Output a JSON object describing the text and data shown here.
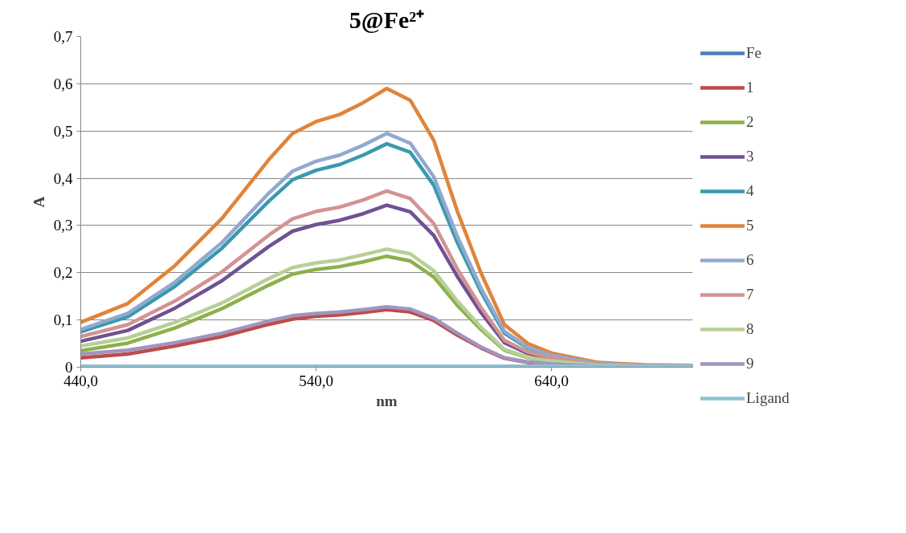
{
  "chart_data": {
    "type": "line",
    "title": "5@Fe²⁺",
    "xlabel": "nm",
    "ylabel": "A",
    "x": [
      440,
      460,
      480,
      500,
      520,
      530,
      540,
      550,
      560,
      570,
      580,
      590,
      600,
      610,
      620,
      630,
      640,
      660,
      680,
      700
    ],
    "xlim": [
      440,
      700
    ],
    "ylim": [
      0,
      0.7
    ],
    "xticks": [
      {
        "value": 440,
        "label": "440,0"
      },
      {
        "value": 540,
        "label": "540,0"
      },
      {
        "value": 640,
        "label": "640,0"
      }
    ],
    "yticks": [
      0,
      {
        "value": 0.1,
        "label": "0,1"
      },
      {
        "value": 0.2,
        "label": "0,2"
      },
      {
        "value": 0.3,
        "label": "0,3"
      },
      {
        "value": 0.4,
        "label": "0,4"
      },
      {
        "value": 0.5,
        "label": "0,5"
      },
      {
        "value": 0.6,
        "label": "0,6"
      },
      {
        "value": 0.7,
        "label": "0,7"
      }
    ],
    "grid": "y",
    "legend": "right",
    "marker": "none",
    "line_style": "solid",
    "series": [
      {
        "name": "Fe",
        "color": "#4a7ebb",
        "values": [
          null,
          null,
          null,
          null,
          null,
          null,
          null,
          null,
          null,
          null,
          null,
          null,
          null,
          null,
          null,
          null,
          null,
          null,
          null,
          null
        ]
      },
      {
        "name": "1",
        "color": "#be4b48",
        "values": [
          0.02,
          0.028,
          0.045,
          0.065,
          0.091,
          0.102,
          0.108,
          0.111,
          0.116,
          0.122,
          0.117,
          0.099,
          0.068,
          0.041,
          0.019,
          0.01,
          0.006,
          0.002,
          0.001,
          0.001
        ]
      },
      {
        "name": "2",
        "color": "#8db04b",
        "values": [
          0.035,
          0.051,
          0.083,
          0.124,
          0.174,
          0.197,
          0.207,
          0.213,
          0.223,
          0.235,
          0.225,
          0.191,
          0.131,
          0.08,
          0.036,
          0.02,
          0.012,
          0.004,
          0.002,
          0.002
        ]
      },
      {
        "name": "3",
        "color": "#6f5293",
        "values": [
          0.055,
          0.078,
          0.125,
          0.183,
          0.256,
          0.288,
          0.302,
          0.311,
          0.325,
          0.343,
          0.329,
          0.279,
          0.192,
          0.116,
          0.052,
          0.029,
          0.017,
          0.006,
          0.003,
          0.002
        ]
      },
      {
        "name": "4",
        "color": "#3a99b0",
        "values": [
          0.075,
          0.107,
          0.171,
          0.252,
          0.352,
          0.397,
          0.417,
          0.429,
          0.449,
          0.473,
          0.455,
          0.385,
          0.264,
          0.16,
          0.072,
          0.04,
          0.024,
          0.008,
          0.004,
          0.003
        ]
      },
      {
        "name": "5",
        "color": "#e0843a",
        "values": [
          0.095,
          0.135,
          0.215,
          0.315,
          0.44,
          0.495,
          0.52,
          0.535,
          0.56,
          0.59,
          0.565,
          0.48,
          0.33,
          0.2,
          0.09,
          0.05,
          0.03,
          0.01,
          0.005,
          0.004
        ]
      },
      {
        "name": "6",
        "color": "#92a9cf",
        "values": [
          0.08,
          0.114,
          0.18,
          0.264,
          0.369,
          0.415,
          0.436,
          0.449,
          0.47,
          0.495,
          0.474,
          0.403,
          0.277,
          0.168,
          0.076,
          0.042,
          0.025,
          0.008,
          0.004,
          0.003
        ]
      },
      {
        "name": "7",
        "color": "#d49292",
        "values": [
          0.065,
          0.09,
          0.14,
          0.202,
          0.28,
          0.314,
          0.33,
          0.339,
          0.354,
          0.373,
          0.357,
          0.304,
          0.208,
          0.127,
          0.057,
          0.032,
          0.019,
          0.006,
          0.003,
          0.003
        ]
      },
      {
        "name": "8",
        "color": "#b8cf96",
        "values": [
          0.045,
          0.062,
          0.095,
          0.136,
          0.188,
          0.211,
          0.221,
          0.227,
          0.238,
          0.25,
          0.24,
          0.204,
          0.14,
          0.085,
          0.038,
          0.021,
          0.013,
          0.004,
          0.002,
          0.002
        ]
      },
      {
        "name": "9",
        "color": "#a294bf",
        "values": [
          0.028,
          0.036,
          0.052,
          0.072,
          0.098,
          0.109,
          0.114,
          0.117,
          0.122,
          0.128,
          0.123,
          0.104,
          0.072,
          0.043,
          0.02,
          0.011,
          0.007,
          0.002,
          0.001,
          0.001
        ]
      },
      {
        "name": "Ligand",
        "color": "#8ec1d6",
        "values": [
          0.002,
          0.002,
          0.002,
          0.002,
          0.002,
          0.002,
          0.002,
          0.002,
          0.002,
          0.002,
          0.002,
          0.002,
          0.002,
          0.002,
          0.002,
          0.002,
          0.002,
          0.002,
          0.002,
          0.002
        ]
      }
    ]
  }
}
